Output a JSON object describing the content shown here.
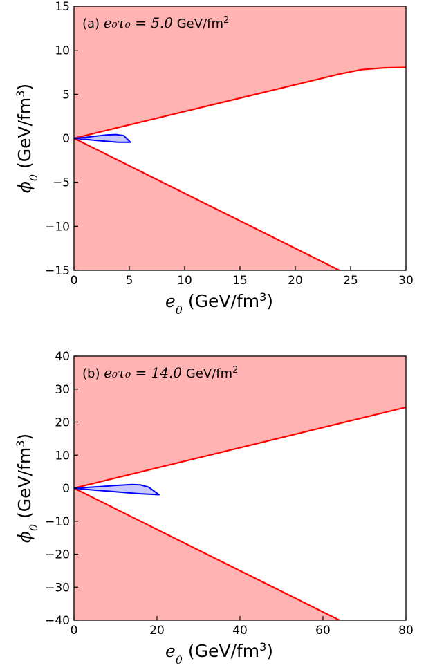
{
  "chart_data": [
    {
      "type": "area",
      "panel_label": "(a)",
      "annotation": {
        "prefix": "(a) ",
        "math": "e₀τ₀ = 5.0",
        "unit": " GeV/fm",
        "sup": "2"
      },
      "xlabel": {
        "symbol": "e",
        "sub": "0",
        "unit_pre": " (GeV/fm",
        "sup": "3",
        "unit_post": ")"
      },
      "ylabel": {
        "symbol": "ϕ",
        "sub": "0",
        "unit_pre": " (GeV/fm",
        "sup": "3",
        "unit_post": ")"
      },
      "xlim": [
        0,
        30
      ],
      "ylim": [
        -15,
        15
      ],
      "xticks": [
        0,
        5,
        10,
        15,
        20,
        25,
        30
      ],
      "yticks": [
        -15,
        -10,
        -5,
        0,
        5,
        10,
        15
      ],
      "upper_boundary": [
        [
          0,
          0
        ],
        [
          24,
          7.3
        ],
        [
          26,
          7.8
        ],
        [
          28,
          8.0
        ],
        [
          30,
          8.05
        ]
      ],
      "lower_boundary": [
        [
          0,
          0
        ],
        [
          24,
          -15
        ]
      ],
      "blue_region": [
        [
          0,
          0
        ],
        [
          1,
          0.1
        ],
        [
          2,
          0.25
        ],
        [
          3,
          0.38
        ],
        [
          3.8,
          0.42
        ],
        [
          4.5,
          0.3
        ],
        [
          5.1,
          -0.45
        ],
        [
          4,
          -0.45
        ],
        [
          3,
          -0.35
        ],
        [
          2,
          -0.25
        ],
        [
          1,
          -0.12
        ],
        [
          0,
          0
        ]
      ],
      "colors": {
        "excluded_fill": "#ffb3b3",
        "boundary_line": "#ff0000",
        "blue_fill": "#c8c8ff",
        "blue_line": "#0000ff"
      }
    },
    {
      "type": "area",
      "panel_label": "(b)",
      "annotation": {
        "prefix": "(b) ",
        "math": "e₀τ₀ = 14.0",
        "unit": " GeV/fm",
        "sup": "2"
      },
      "xlabel": {
        "symbol": "e",
        "sub": "0",
        "unit_pre": " (GeV/fm",
        "sup": "3",
        "unit_post": ")"
      },
      "ylabel": {
        "symbol": "ϕ",
        "sub": "0",
        "unit_pre": " (GeV/fm",
        "sup": "3",
        "unit_post": ")"
      },
      "xlim": [
        0,
        80
      ],
      "ylim": [
        -40,
        40
      ],
      "xticks": [
        0,
        20,
        40,
        60,
        80
      ],
      "yticks": [
        -40,
        -30,
        -20,
        -10,
        0,
        10,
        20,
        30,
        40
      ],
      "upper_boundary": [
        [
          0,
          0
        ],
        [
          80,
          24.5
        ]
      ],
      "lower_boundary": [
        [
          0,
          0
        ],
        [
          64,
          -40
        ]
      ],
      "blue_region": [
        [
          0,
          0
        ],
        [
          3,
          0.2
        ],
        [
          6,
          0.45
        ],
        [
          10,
          0.8
        ],
        [
          14,
          1.1
        ],
        [
          16,
          1.0
        ],
        [
          18,
          0.3
        ],
        [
          20.5,
          -2.0
        ],
        [
          16,
          -1.7
        ],
        [
          12,
          -1.3
        ],
        [
          8,
          -0.9
        ],
        [
          4,
          -0.5
        ],
        [
          0,
          0
        ]
      ],
      "colors": {
        "excluded_fill": "#ffb3b3",
        "boundary_line": "#ff0000",
        "blue_fill": "#c8c8ff",
        "blue_line": "#0000ff"
      }
    }
  ]
}
